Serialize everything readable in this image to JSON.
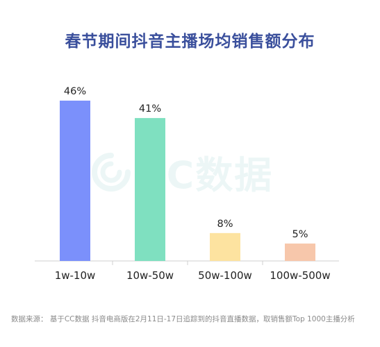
{
  "title": "春节期间抖音主播场均销售额分布",
  "watermark": "CC数据",
  "source": "数据来源： 基于CC数据 抖音电商版在2月11日-17日追踪到的抖音直播数据，取销售额Top 1000主播分析",
  "chart_data": {
    "type": "bar",
    "title": "春节期间抖音主播场均销售额分布",
    "categories": [
      "1w-10w",
      "10w-50w",
      "50w-100w",
      "100w-500w"
    ],
    "values": [
      46,
      41,
      8,
      5
    ],
    "value_labels": [
      "46%",
      "41%",
      "8%",
      "5%"
    ],
    "colors": [
      "#7b90fb",
      "#7fe0c0",
      "#fde3a0",
      "#f7c7ab"
    ],
    "xlabel": "",
    "ylabel": "",
    "ylim": [
      0,
      46
    ],
    "grid": false,
    "legend": "none"
  }
}
